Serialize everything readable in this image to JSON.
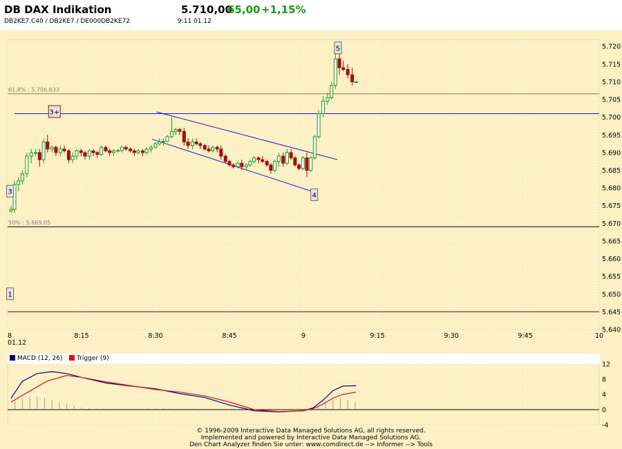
{
  "header": {
    "title": "DB DAX Indikation",
    "price": "5.710,00",
    "change": "65,00",
    "change_pct": "+1,15%",
    "ids": "DB2KE7.C40  /  DB2KE7  /  DE000DB2KE72",
    "time": "9:11   01.12"
  },
  "colors": {
    "background": "#fdf0c5",
    "up": "#1a9a1a",
    "down": "#a01010",
    "trendline": "#1a1acc",
    "macd": "#000080",
    "trigger": "#dd1010"
  },
  "footer": {
    "line1": "© 1996-2009 Interactive Data Managed Solutions AG, all rights reserved.",
    "line2": "Implemented and powered by  Interactive Data Managed Solutions AG.",
    "line3": "Den Chart Analyzer finden Sie unter: www.comdirect.de --> Informer --> Tools"
  },
  "chart_data": [
    {
      "type": "candlestick",
      "x_unit": "minutes after 8:00",
      "xlim": [
        0,
        120
      ],
      "ylim": [
        5640,
        5722
      ],
      "x_tick_labels": [
        {
          "x": 0,
          "label": "8",
          "sub": "01.12"
        },
        {
          "x": 15,
          "label": "8:15"
        },
        {
          "x": 30,
          "label": "8:30"
        },
        {
          "x": 45,
          "label": "8:45"
        },
        {
          "x": 60,
          "label": "9"
        },
        {
          "x": 75,
          "label": "9:15"
        },
        {
          "x": 90,
          "label": "9:30"
        },
        {
          "x": 105,
          "label": "9:45"
        },
        {
          "x": 120,
          "label": "10"
        }
      ],
      "y_ticks": [
        {
          "v": 5640,
          "label": "5.640"
        },
        {
          "v": 5645,
          "label": "5.645"
        },
        {
          "v": 5650,
          "label": "5.650"
        },
        {
          "v": 5655,
          "label": "5.655"
        },
        {
          "v": 5660,
          "label": "5.660"
        },
        {
          "v": 5665,
          "label": "5.665"
        },
        {
          "v": 5670,
          "label": "5.670"
        },
        {
          "v": 5675,
          "label": "5.675"
        },
        {
          "v": 5680,
          "label": "5.680"
        },
        {
          "v": 5685,
          "label": "5.685"
        },
        {
          "v": 5690,
          "label": "5.690"
        },
        {
          "v": 5695,
          "label": "5.695"
        },
        {
          "v": 5700,
          "label": "5.700"
        },
        {
          "v": 5705,
          "label": "5.705"
        },
        {
          "v": 5710,
          "label": "5.710"
        },
        {
          "v": 5715,
          "label": "5.715"
        },
        {
          "v": 5720,
          "label": "5.720"
        }
      ],
      "candles": [
        [
          0.7,
          5673.5,
          5675,
          5673,
          5674
        ],
        [
          1.4,
          5674,
          5682,
          5673,
          5681
        ],
        [
          2.2,
          5681,
          5683,
          5679,
          5682
        ],
        [
          3.0,
          5682,
          5685,
          5681,
          5684
        ],
        [
          3.9,
          5684,
          5690,
          5683,
          5689
        ],
        [
          4.8,
          5689,
          5691,
          5687,
          5690
        ],
        [
          5.7,
          5690,
          5691,
          5689,
          5690
        ],
        [
          6.5,
          5690,
          5691,
          5686,
          5688
        ],
        [
          7.3,
          5688,
          5694,
          5687,
          5693
        ],
        [
          8.1,
          5693,
          5695,
          5690,
          5691
        ],
        [
          9.0,
          5691,
          5692,
          5690,
          5691.5
        ],
        [
          9.8,
          5691.5,
          5692,
          5689,
          5690
        ],
        [
          10.7,
          5690,
          5692,
          5689,
          5691
        ],
        [
          11.5,
          5691,
          5692,
          5690,
          5690.5
        ],
        [
          12.4,
          5690.5,
          5691,
          5687,
          5688
        ],
        [
          13.2,
          5688,
          5690,
          5687,
          5689
        ],
        [
          14.0,
          5689,
          5691,
          5688,
          5690.5
        ],
        [
          14.9,
          5690.5,
          5691,
          5689,
          5690
        ],
        [
          15.7,
          5690,
          5690.5,
          5688,
          5689
        ],
        [
          16.6,
          5689,
          5691,
          5688,
          5690.5
        ],
        [
          17.4,
          5690.5,
          5691,
          5689,
          5690
        ],
        [
          18.2,
          5690,
          5690.5,
          5688.5,
          5689.5
        ],
        [
          19.0,
          5689.5,
          5692,
          5689,
          5691.5
        ],
        [
          19.9,
          5691.5,
          5692,
          5690,
          5690.5
        ],
        [
          20.7,
          5690.5,
          5691,
          5689,
          5690
        ],
        [
          21.5,
          5690,
          5691,
          5689,
          5690.5
        ],
        [
          22.4,
          5690.5,
          5691,
          5690,
          5690.6
        ],
        [
          23.2,
          5690.6,
          5692,
          5690,
          5691.5
        ],
        [
          24.0,
          5691.5,
          5692,
          5690.5,
          5691
        ],
        [
          24.9,
          5691,
          5691.5,
          5690,
          5690.5
        ],
        [
          25.7,
          5690.5,
          5691,
          5689,
          5690
        ],
        [
          26.5,
          5690,
          5691,
          5689.5,
          5690.5
        ],
        [
          27.4,
          5690.5,
          5691,
          5689,
          5690
        ],
        [
          28.2,
          5690,
          5691.5,
          5689.5,
          5691
        ],
        [
          29.1,
          5691,
          5692,
          5690,
          5691.5
        ],
        [
          30.0,
          5691.5,
          5693,
          5691,
          5692.5
        ],
        [
          30.8,
          5692.5,
          5694,
          5692,
          5693
        ],
        [
          31.6,
          5693,
          5694,
          5692,
          5693.2
        ],
        [
          32.4,
          5693.2,
          5695,
          5693,
          5694.5
        ],
        [
          33.3,
          5694.5,
          5700,
          5694,
          5696
        ],
        [
          34.1,
          5696,
          5697,
          5695,
          5696.5
        ],
        [
          34.9,
          5696.5,
          5697,
          5695,
          5696
        ],
        [
          35.8,
          5696,
          5697,
          5692,
          5693
        ],
        [
          36.6,
          5693,
          5694,
          5691,
          5692
        ],
        [
          37.5,
          5692,
          5694,
          5691,
          5693
        ],
        [
          38.3,
          5693,
          5694,
          5692,
          5692.5
        ],
        [
          39.1,
          5692.5,
          5693,
          5691,
          5692
        ],
        [
          40.0,
          5692,
          5692.5,
          5690.5,
          5691
        ],
        [
          40.8,
          5691,
          5692,
          5690,
          5690.5
        ],
        [
          41.6,
          5690.5,
          5692,
          5690,
          5691.5
        ],
        [
          42.5,
          5691.5,
          5692,
          5690,
          5691
        ],
        [
          43.3,
          5691,
          5692,
          5688,
          5689
        ],
        [
          44.2,
          5689,
          5689.5,
          5687,
          5687.5
        ],
        [
          45.0,
          5687.5,
          5688,
          5686,
          5686.5
        ],
        [
          45.8,
          5686.5,
          5687,
          5685.5,
          5686
        ],
        [
          46.7,
          5686,
          5687.5,
          5685.5,
          5687
        ],
        [
          47.5,
          5687,
          5688,
          5685,
          5686
        ],
        [
          48.4,
          5686,
          5687,
          5685,
          5686.5
        ],
        [
          49.2,
          5686.5,
          5688,
          5686,
          5687.5
        ],
        [
          50.0,
          5687.5,
          5689,
          5687,
          5688.5
        ],
        [
          50.9,
          5688.5,
          5689,
          5687,
          5688
        ],
        [
          51.7,
          5688,
          5689,
          5687,
          5687.5
        ],
        [
          52.6,
          5687.5,
          5688,
          5686,
          5686.5
        ],
        [
          53.4,
          5686.5,
          5687,
          5684,
          5685
        ],
        [
          54.2,
          5685,
          5688,
          5684.5,
          5687.5
        ],
        [
          55.0,
          5687.5,
          5690,
          5686,
          5689
        ],
        [
          55.9,
          5689,
          5690,
          5686,
          5687
        ],
        [
          56.7,
          5687,
          5691,
          5686.5,
          5690
        ],
        [
          57.5,
          5690,
          5691,
          5688,
          5688.5
        ],
        [
          58.3,
          5688.5,
          5689,
          5686,
          5686.5
        ],
        [
          59.1,
          5686.5,
          5687,
          5685,
          5685.5
        ],
        [
          59.9,
          5685.5,
          5689,
          5685,
          5688.5
        ],
        [
          60.7,
          5688.5,
          5690,
          5683,
          5685
        ],
        [
          61.5,
          5685,
          5689,
          5684.5,
          5688.5
        ],
        [
          62.3,
          5688.5,
          5695,
          5688,
          5694.5
        ],
        [
          63.1,
          5694.5,
          5702,
          5694,
          5701
        ],
        [
          64.0,
          5701,
          5706,
          5700,
          5704.5
        ],
        [
          64.9,
          5704.5,
          5707,
          5703.5,
          5705.5
        ],
        [
          65.7,
          5705.5,
          5710,
          5705,
          5709
        ],
        [
          66.5,
          5709,
          5718,
          5708,
          5716.5
        ],
        [
          67.3,
          5716.5,
          5719,
          5712,
          5714
        ],
        [
          68.1,
          5714,
          5716,
          5713,
          5713.5
        ],
        [
          69.0,
          5713.5,
          5715,
          5711,
          5712
        ],
        [
          69.9,
          5712,
          5714,
          5709,
          5710
        ],
        [
          70.7,
          5710,
          5710.2,
          5709.8,
          5710
        ]
      ],
      "horizontal_lines": [
        {
          "name": "fib-61-8",
          "value": 5706.633,
          "label": "61,8% : 5.706,633",
          "color": "#8a7a66"
        },
        {
          "name": "level-3-plus",
          "value": 5701,
          "label": "",
          "color": "#1a1acc"
        },
        {
          "name": "fib-50",
          "value": 5669.05,
          "label": "50% : 5.669,05",
          "color": "#000000"
        },
        {
          "name": "level-1",
          "value": 5645,
          "label": "",
          "color": "#800000"
        }
      ],
      "trendlines": [
        {
          "name": "channel-upper",
          "from": [
            30.2,
            5701.5
          ],
          "to": [
            66.9,
            5688
          ]
        },
        {
          "name": "channel-lower",
          "from": [
            29.3,
            5693.8
          ],
          "to": [
            61.4,
            5679.2
          ]
        }
      ],
      "markers": [
        {
          "name": "marker-1",
          "label": "1",
          "x": 0.5,
          "y": 5650
        },
        {
          "name": "marker-3",
          "label": "3",
          "x": 0.5,
          "y": 5679
        },
        {
          "name": "marker-3-plus",
          "label": "3+",
          "x": 9.5,
          "y": 5701.5
        },
        {
          "name": "marker-4",
          "label": "4",
          "x": 62.2,
          "y": 5678
        },
        {
          "name": "marker-5",
          "label": "5",
          "x": 67.0,
          "y": 5719.5
        }
      ]
    },
    {
      "type": "line",
      "legend": [
        {
          "name": "MACD (12, 26)",
          "color": "#000080"
        },
        {
          "name": "Trigger (9)",
          "color": "#dd1010"
        }
      ],
      "ylim": [
        -4,
        12
      ],
      "y_ticks": [
        {
          "v": -4,
          "label": "-4"
        },
        {
          "v": 0,
          "label": "0"
        },
        {
          "v": 4,
          "label": "4"
        },
        {
          "v": 8,
          "label": "8"
        },
        {
          "v": 12,
          "label": "12"
        }
      ],
      "series": [
        {
          "name": "MACD (12, 26)",
          "x": [
            0.7,
            3,
            6,
            9,
            12,
            15,
            20,
            25,
            30,
            35,
            40,
            45,
            50,
            55,
            60,
            62,
            64,
            66,
            68,
            70.7
          ],
          "values": [
            3,
            7.5,
            9.5,
            10,
            9.5,
            8.5,
            7,
            6.2,
            5.5,
            4.2,
            3.2,
            1.2,
            -0.3,
            -0.6,
            -0.3,
            0.5,
            2.5,
            5,
            6.2,
            6.3
          ]
        },
        {
          "name": "Trigger (9)",
          "x": [
            0.7,
            4,
            8,
            12,
            15,
            20,
            25,
            30,
            35,
            40,
            45,
            50,
            55,
            60,
            62,
            64,
            66,
            68,
            70.7
          ],
          "values": [
            2,
            4.5,
            7.5,
            9,
            8.5,
            7.3,
            6.3,
            5.3,
            4.6,
            3.6,
            2,
            0,
            -0.5,
            -0.3,
            0.3,
            1.5,
            3,
            4,
            4.6
          ]
        }
      ],
      "histogram": {
        "x": [
          1.5,
          3,
          4.5,
          6,
          7.5,
          9,
          10.5,
          12,
          13.5,
          15,
          16.5,
          18,
          19.5,
          21,
          22.5,
          24,
          25.5,
          27,
          28.5,
          30,
          31.5,
          33,
          34.5,
          36,
          37.5,
          39,
          40.5,
          42,
          43.5,
          45,
          46.5,
          48,
          49.5,
          51,
          52.5,
          54,
          55.5,
          57,
          58.5,
          60,
          61.5,
          63,
          64.5,
          66,
          67.5,
          69,
          70.5
        ],
        "values": [
          2.5,
          3,
          3.3,
          3.4,
          3,
          2.5,
          2,
          1.5,
          1,
          0.6,
          0.4,
          0.3,
          0.3,
          0.2,
          0.3,
          0.3,
          0.3,
          0.3,
          0.4,
          0.4,
          0.4,
          0.4,
          0.3,
          0.3,
          0.3,
          0.2,
          0.2,
          0.2,
          0.1,
          0.1,
          0.1,
          0.1,
          0.1,
          0.1,
          0.1,
          0.1,
          0.2,
          0.2,
          0.2,
          0.2,
          0.3,
          1,
          1.8,
          2.5,
          3,
          2.5,
          2
        ],
        "color": "#999999"
      }
    }
  ]
}
